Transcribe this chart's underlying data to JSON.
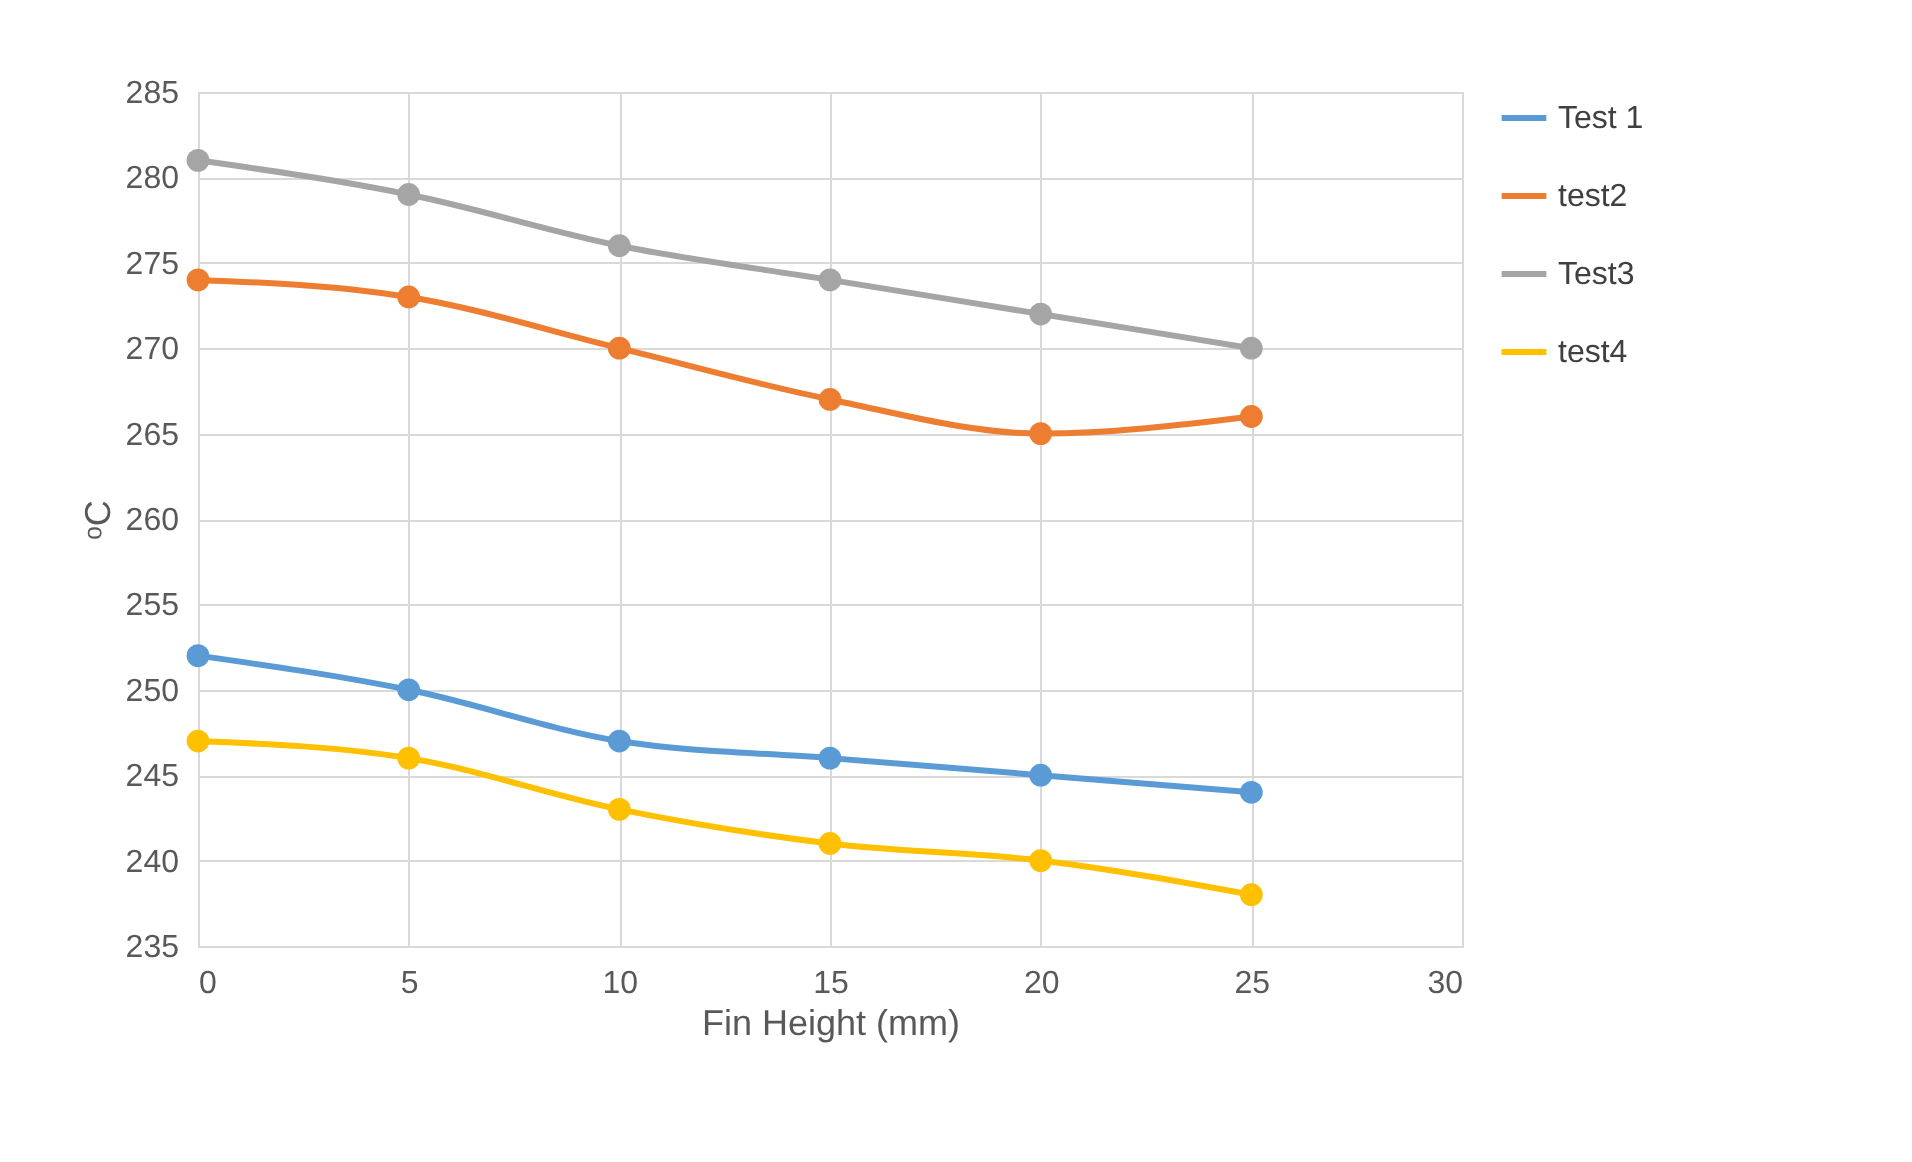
{
  "chart_data": {
    "type": "line",
    "xlabel": "Fin Height (mm)",
    "ylabel": "ᵒC",
    "x": [
      0,
      5,
      10,
      15,
      20,
      25
    ],
    "series": [
      {
        "name": "Test 1",
        "color": "#5b9bd5",
        "values": [
          252,
          250,
          247,
          246,
          245,
          244
        ]
      },
      {
        "name": "test2",
        "color": "#ed7d31",
        "values": [
          274,
          273,
          270,
          267,
          265,
          266
        ]
      },
      {
        "name": "Test3",
        "color": "#a5a5a5",
        "values": [
          281,
          279,
          276,
          274,
          272,
          270
        ]
      },
      {
        "name": "test4",
        "color": "#ffc000",
        "values": [
          247,
          246,
          243,
          241,
          240,
          238
        ]
      }
    ],
    "xlim": [
      0,
      30
    ],
    "xticks": [
      0,
      5,
      10,
      15,
      20,
      25,
      30
    ],
    "ylim": [
      235,
      285
    ],
    "yticks": [
      235,
      240,
      245,
      250,
      255,
      260,
      265,
      270,
      275,
      280,
      285
    ],
    "grid": true,
    "legend": "right",
    "marker": "circle",
    "line_style": "solid"
  }
}
